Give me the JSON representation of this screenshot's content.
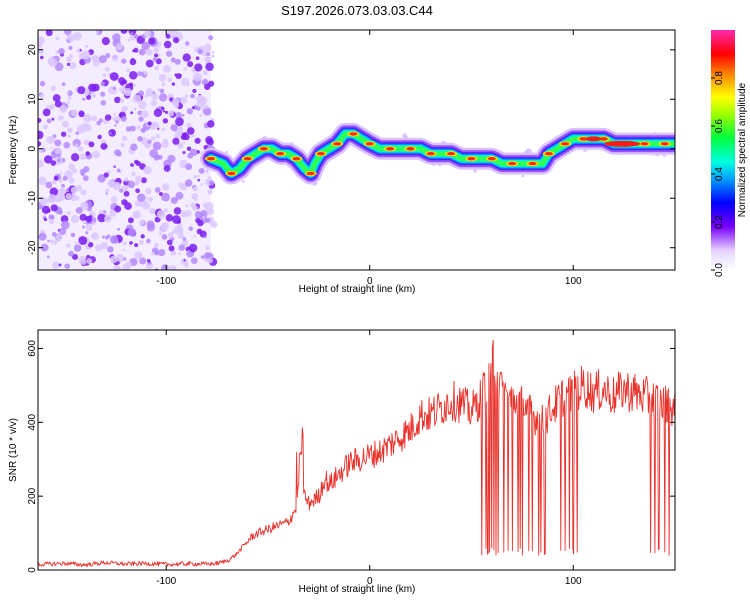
{
  "title": "S197.2026.073.03.03.C44",
  "chart_data": [
    {
      "type": "heatmap",
      "name": "spectrogram",
      "xlabel": "Height of straight line (km)",
      "ylabel": "Frequency (Hz)",
      "xlim": [
        -163,
        150
      ],
      "ylim": [
        -24.5,
        24
      ],
      "xticks": [
        -100,
        0,
        100
      ],
      "yticks": [
        -20,
        -10,
        0,
        10,
        20
      ],
      "colorbar": {
        "label": "Normalized spectral amplitude",
        "range": [
          0,
          1
        ],
        "ticks": [
          0.0,
          0.2,
          0.4,
          0.6,
          0.8
        ]
      },
      "noise_region_x": [
        -163,
        -78
      ],
      "ridge": [
        [
          -78,
          -2
        ],
        [
          -72,
          -3
        ],
        [
          -68,
          -5
        ],
        [
          -64,
          -4
        ],
        [
          -60,
          -2
        ],
        [
          -56,
          -1
        ],
        [
          -52,
          0
        ],
        [
          -48,
          0
        ],
        [
          -44,
          -1
        ],
        [
          -40,
          -1
        ],
        [
          -36,
          -2
        ],
        [
          -32,
          -4
        ],
        [
          -29,
          -5
        ],
        [
          -27,
          -3
        ],
        [
          -24,
          -1
        ],
        [
          -20,
          0
        ],
        [
          -16,
          1
        ],
        [
          -12,
          3
        ],
        [
          -8,
          3
        ],
        [
          -4,
          2
        ],
        [
          0,
          1
        ],
        [
          5,
          0
        ],
        [
          10,
          0
        ],
        [
          15,
          0
        ],
        [
          20,
          0
        ],
        [
          25,
          0
        ],
        [
          30,
          -1
        ],
        [
          35,
          -1
        ],
        [
          40,
          -1
        ],
        [
          45,
          -2
        ],
        [
          50,
          -2
        ],
        [
          55,
          -2
        ],
        [
          60,
          -2
        ],
        [
          65,
          -3
        ],
        [
          70,
          -3
        ],
        [
          75,
          -3
        ],
        [
          80,
          -3
        ],
        [
          85,
          -3
        ],
        [
          88,
          -1
        ],
        [
          92,
          0
        ],
        [
          96,
          1
        ],
        [
          100,
          2
        ],
        [
          105,
          2
        ],
        [
          110,
          2
        ],
        [
          115,
          2
        ],
        [
          120,
          1
        ],
        [
          125,
          1
        ],
        [
          130,
          1
        ],
        [
          135,
          1
        ],
        [
          140,
          1
        ],
        [
          145,
          1
        ],
        [
          150,
          1
        ]
      ]
    },
    {
      "type": "line",
      "name": "snr",
      "xlabel": "Height of straight line (km)",
      "ylabel": "SNR (10 * v/v)",
      "xlim": [
        -163,
        150
      ],
      "ylim": [
        0,
        650
      ],
      "xticks": [
        -100,
        0,
        100
      ],
      "yticks": [
        0,
        200,
        400,
        600
      ],
      "series": [
        {
          "name": "SNR",
          "color": "#e8312a",
          "x": [
            -163,
            -150,
            -140,
            -130,
            -120,
            -110,
            -100,
            -90,
            -80,
            -75,
            -70,
            -66,
            -62,
            -58,
            -55,
            -50,
            -45,
            -40,
            -36,
            -34,
            -33,
            -32,
            -30,
            -25,
            -22,
            -20,
            -15,
            -10,
            -5,
            0,
            5,
            10,
            15,
            20,
            25,
            30,
            35,
            40,
            45,
            50,
            55,
            58,
            60,
            65,
            70,
            75,
            80,
            85,
            90,
            95,
            100,
            105,
            110,
            115,
            120,
            125,
            130,
            135,
            140,
            145,
            150
          ],
          "y": [
            15,
            18,
            14,
            20,
            16,
            18,
            15,
            17,
            16,
            18,
            25,
            40,
            65,
            90,
            100,
            110,
            120,
            130,
            170,
            330,
            250,
            200,
            180,
            200,
            250,
            230,
            260,
            290,
            300,
            310,
            320,
            340,
            360,
            380,
            420,
            420,
            440,
            460,
            450,
            430,
            470,
            520,
            580,
            480,
            460,
            450,
            420,
            400,
            440,
            470,
            480,
            500,
            480,
            490,
            470,
            490,
            480,
            470,
            460,
            450,
            440
          ]
        }
      ],
      "dropouts_x": [
        55,
        57,
        58,
        59,
        60,
        61,
        62,
        63,
        66,
        68,
        70,
        73,
        74,
        75,
        78,
        80,
        83,
        84,
        86,
        94,
        96,
        98,
        100,
        102,
        138,
        140,
        142,
        145,
        147
      ]
    }
  ]
}
